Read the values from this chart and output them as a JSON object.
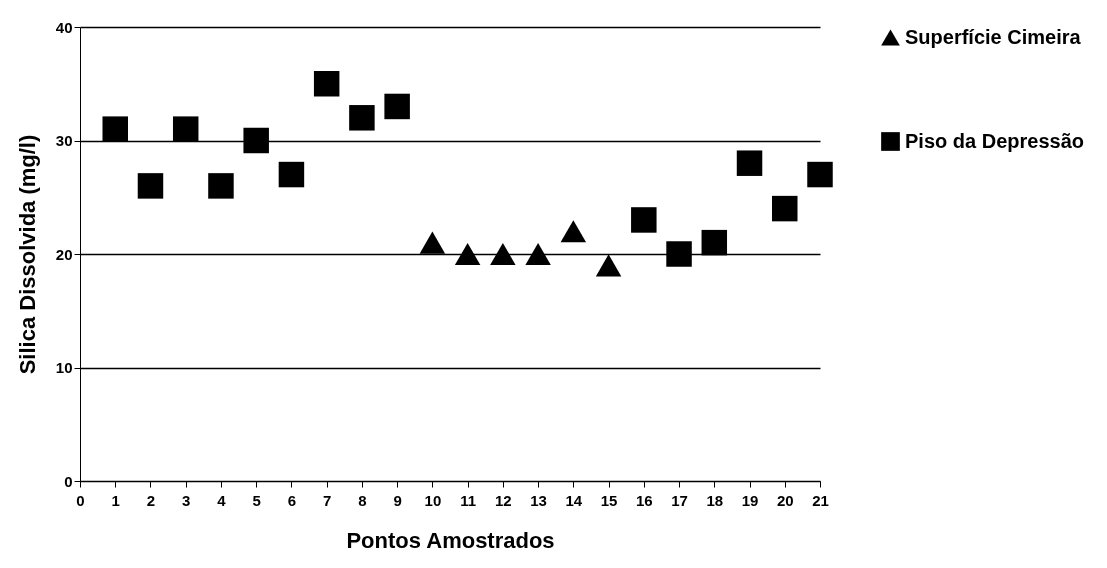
{
  "chart_data": {
    "type": "scatter",
    "xlabel": "Pontos Amostrados",
    "ylabel": "Silica Dissolvida (mg/l)",
    "xlim": [
      0,
      21
    ],
    "xticks": [
      0,
      1,
      2,
      3,
      4,
      5,
      6,
      7,
      8,
      9,
      10,
      11,
      12,
      13,
      14,
      15,
      16,
      17,
      18,
      19,
      20,
      21
    ],
    "ylim": [
      0,
      40
    ],
    "yticks": [
      0,
      10,
      20,
      30,
      40
    ],
    "grid": "y",
    "legend": "right",
    "series": [
      {
        "name": "Superfície Cimeira",
        "color": "#000000",
        "marker": "triangle",
        "x": [
          10,
          11,
          12,
          13,
          14,
          15
        ],
        "values": [
          21,
          20,
          20,
          20,
          22,
          19
        ]
      },
      {
        "name": "Piso da Depressão",
        "color": "#000000",
        "marker": "square",
        "x": [
          1,
          2,
          3,
          4,
          5,
          6,
          7,
          8,
          9,
          16,
          17,
          18,
          19,
          20,
          21
        ],
        "values": [
          31,
          26,
          31,
          26,
          30,
          27,
          35,
          32,
          33,
          23,
          20,
          21,
          28,
          24,
          27
        ]
      }
    ]
  }
}
